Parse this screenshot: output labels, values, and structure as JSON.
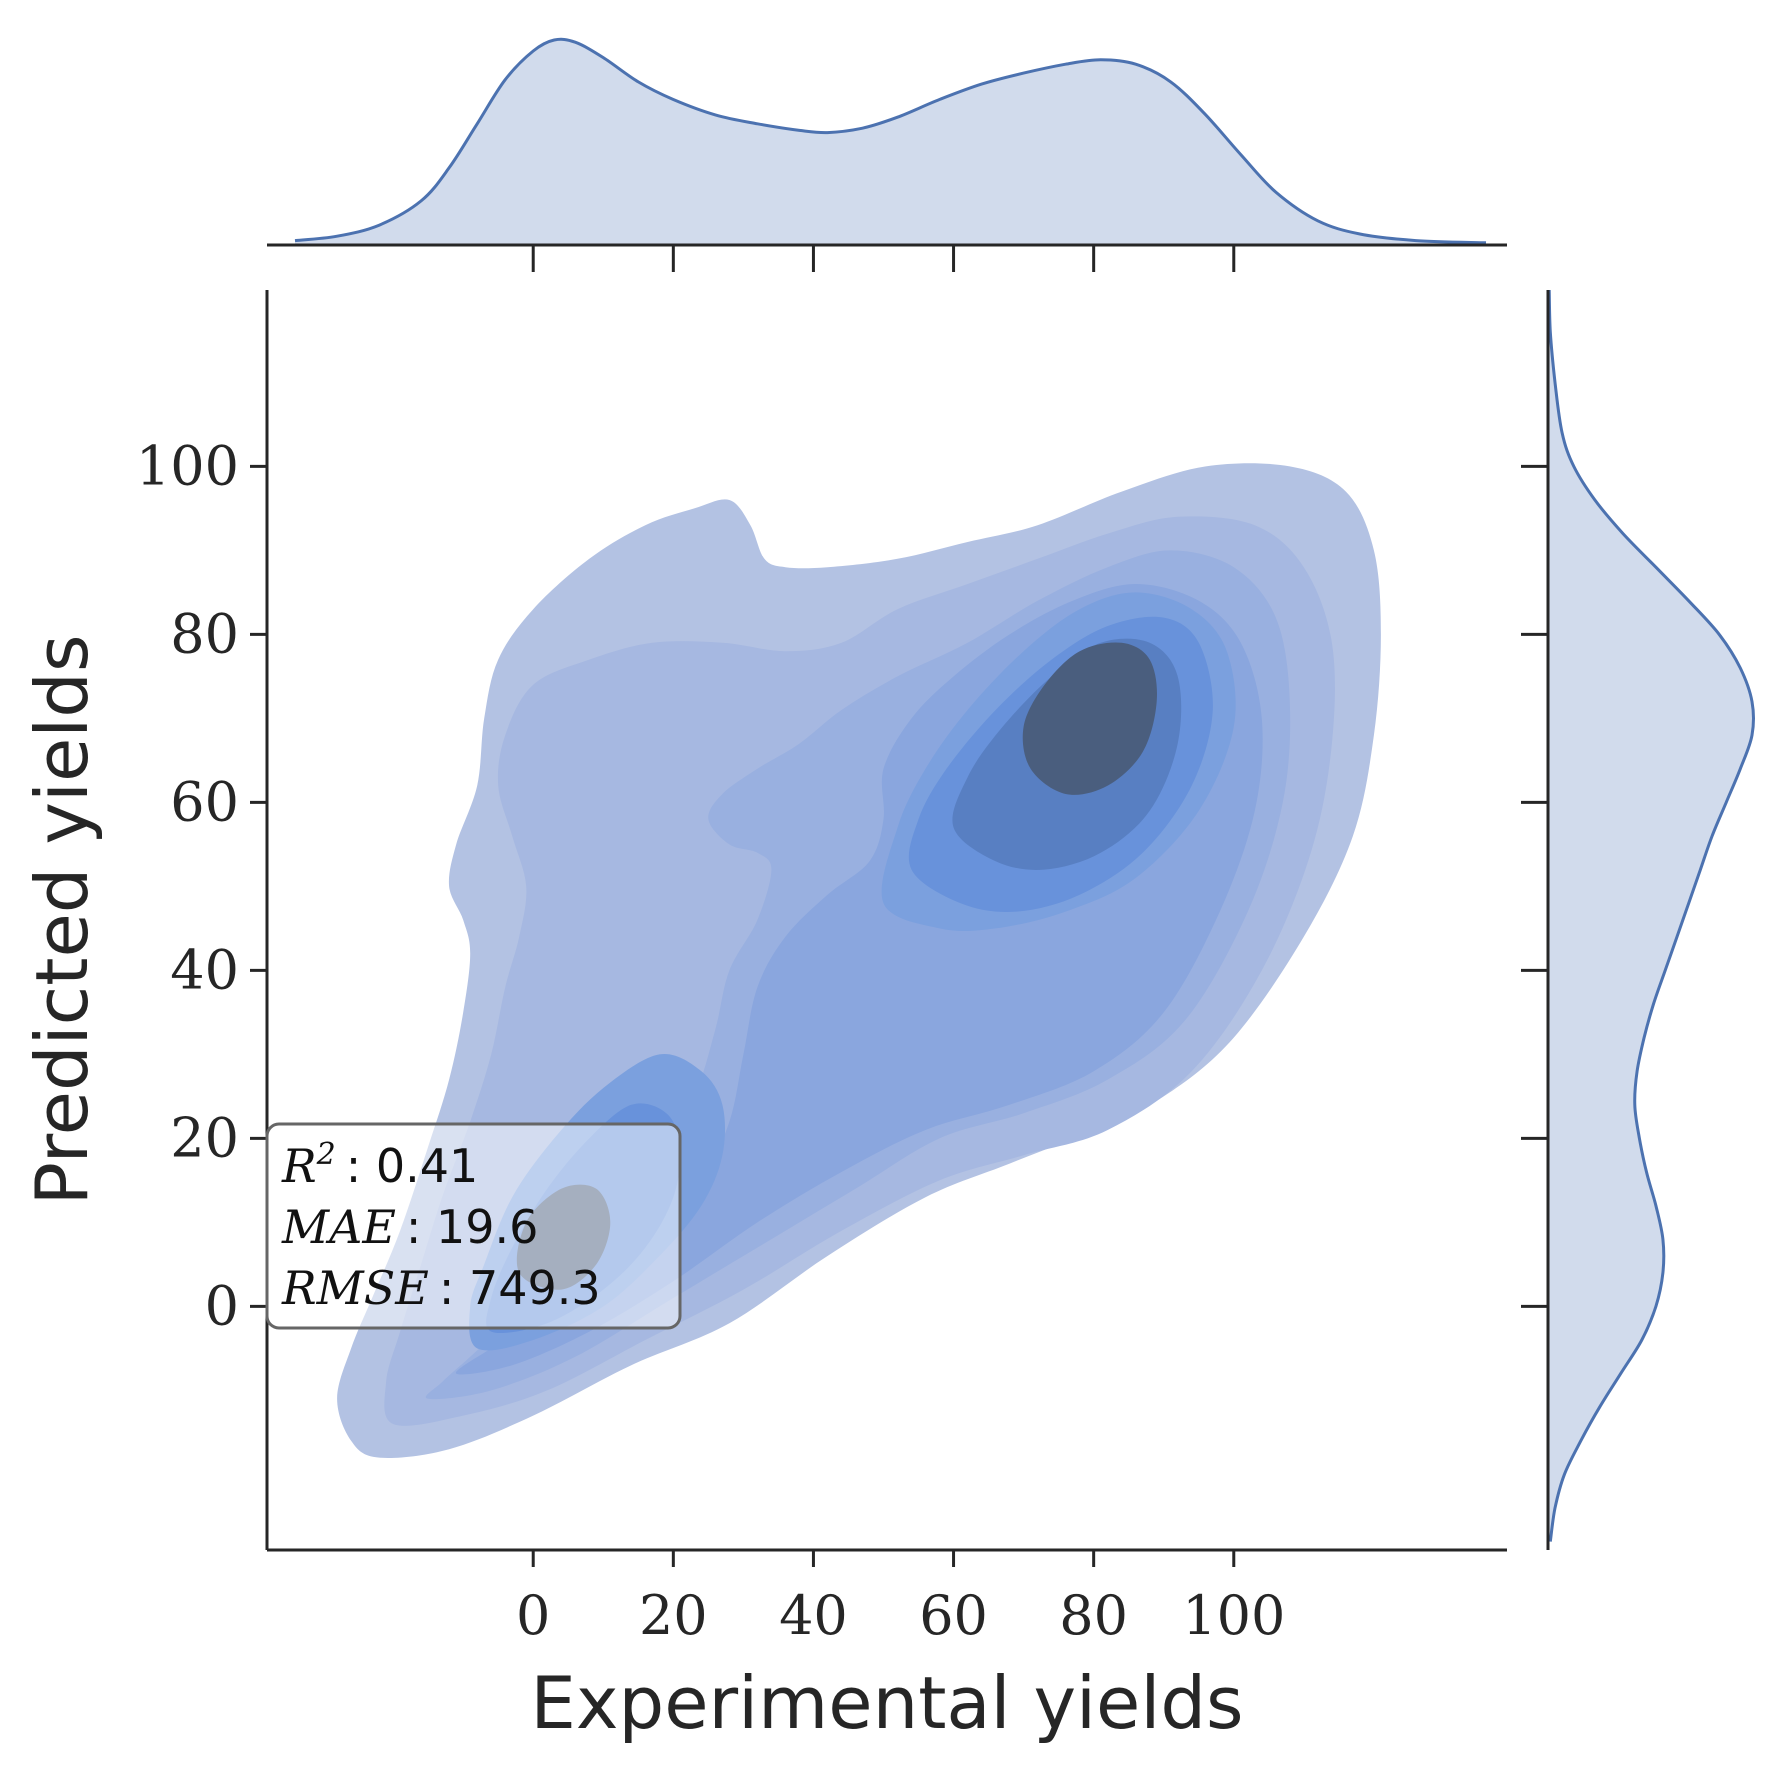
{
  "chart_data": {
    "type": "kde-jointplot",
    "xlabel": "Experimental yields",
    "ylabel": "Predicted yields",
    "x_ticks": [
      0,
      20,
      40,
      60,
      80,
      100
    ],
    "y_ticks": [
      0,
      20,
      40,
      60,
      80,
      100
    ],
    "xlim": [
      -38,
      139
    ],
    "ylim": [
      -29,
      121
    ],
    "color": "#4c72b0",
    "marginal_fill": "#d1dbec",
    "contour_colors": [
      "#b3c2e3",
      "#a6b8e1",
      "#99b0e0",
      "#8aa6de",
      "#7ba0de",
      "#6892db",
      "#587fc2",
      "#4a5e7e"
    ],
    "marginal_x_kde": [
      [
        -34,
        0.002
      ],
      [
        -28,
        0.004
      ],
      [
        -22,
        0.009
      ],
      [
        -16,
        0.02
      ],
      [
        -12,
        0.035
      ],
      [
        -8,
        0.055
      ],
      [
        -4,
        0.075
      ],
      [
        0,
        0.088
      ],
      [
        3,
        0.093
      ],
      [
        6,
        0.092
      ],
      [
        10,
        0.085
      ],
      [
        15,
        0.074
      ],
      [
        20,
        0.066
      ],
      [
        26,
        0.059
      ],
      [
        32,
        0.055
      ],
      [
        38,
        0.052
      ],
      [
        42,
        0.051
      ],
      [
        47,
        0.053
      ],
      [
        52,
        0.058
      ],
      [
        58,
        0.066
      ],
      [
        64,
        0.073
      ],
      [
        70,
        0.078
      ],
      [
        76,
        0.082
      ],
      [
        81,
        0.084
      ],
      [
        86,
        0.082
      ],
      [
        91,
        0.074
      ],
      [
        96,
        0.059
      ],
      [
        101,
        0.041
      ],
      [
        106,
        0.024
      ],
      [
        112,
        0.011
      ],
      [
        118,
        0.005
      ],
      [
        126,
        0.002
      ],
      [
        136,
        0.001
      ]
    ],
    "marginal_y_kde": [
      [
        -28,
        0.001
      ],
      [
        -24,
        0.003
      ],
      [
        -20,
        0.007
      ],
      [
        -16,
        0.014
      ],
      [
        -12,
        0.022
      ],
      [
        -8,
        0.031
      ],
      [
        -4,
        0.04
      ],
      [
        0,
        0.046
      ],
      [
        4,
        0.049
      ],
      [
        8,
        0.049
      ],
      [
        12,
        0.046
      ],
      [
        16,
        0.042
      ],
      [
        20,
        0.039
      ],
      [
        24,
        0.037
      ],
      [
        28,
        0.038
      ],
      [
        32,
        0.041
      ],
      [
        36,
        0.045
      ],
      [
        40,
        0.05
      ],
      [
        44,
        0.055
      ],
      [
        48,
        0.06
      ],
      [
        52,
        0.065
      ],
      [
        56,
        0.07
      ],
      [
        60,
        0.076
      ],
      [
        64,
        0.082
      ],
      [
        68,
        0.087
      ],
      [
        72,
        0.087
      ],
      [
        76,
        0.082
      ],
      [
        80,
        0.073
      ],
      [
        84,
        0.06
      ],
      [
        88,
        0.046
      ],
      [
        92,
        0.032
      ],
      [
        96,
        0.02
      ],
      [
        100,
        0.011
      ],
      [
        104,
        0.006
      ],
      [
        110,
        0.003
      ],
      [
        116,
        0.001
      ],
      [
        121,
        0.0005
      ]
    ],
    "kde_contours": [
      {
        "level": 1,
        "points": [
          [
            -26,
            -16
          ],
          [
            -22,
            -18
          ],
          [
            -12,
            -17
          ],
          [
            0,
            -13
          ],
          [
            14,
            -7
          ],
          [
            28,
            -2
          ],
          [
            42,
            6
          ],
          [
            56,
            13
          ],
          [
            68,
            17
          ],
          [
            80,
            21
          ],
          [
            90,
            25
          ],
          [
            100,
            32
          ],
          [
            110,
            44
          ],
          [
            117,
            56
          ],
          [
            120,
            68
          ],
          [
            121,
            80
          ],
          [
            120,
            90
          ],
          [
            116,
            97
          ],
          [
            108,
            100
          ],
          [
            96,
            100
          ],
          [
            84,
            97
          ],
          [
            72,
            93
          ],
          [
            62,
            91
          ],
          [
            52,
            89
          ],
          [
            42,
            88
          ],
          [
            36,
            88
          ],
          [
            33,
            89
          ],
          [
            31,
            93
          ],
          [
            28,
            96
          ],
          [
            23,
            95
          ],
          [
            16,
            93
          ],
          [
            8,
            89
          ],
          [
            0,
            83
          ],
          [
            -5,
            77
          ],
          [
            -7,
            70
          ],
          [
            -8,
            62
          ],
          [
            -11,
            55
          ],
          [
            -12,
            50
          ],
          [
            -10,
            46
          ],
          [
            -9,
            42
          ],
          [
            -10,
            35
          ],
          [
            -12,
            27
          ],
          [
            -15,
            19
          ],
          [
            -19,
            9
          ],
          [
            -23,
            1
          ],
          [
            -26,
            -5
          ],
          [
            -28,
            -11
          ]
        ]
      },
      {
        "level": 2,
        "points": [
          [
            -20,
            -14
          ],
          [
            -10,
            -13
          ],
          [
            2,
            -10
          ],
          [
            16,
            -4
          ],
          [
            30,
            2
          ],
          [
            44,
            9
          ],
          [
            58,
            15
          ],
          [
            70,
            18
          ],
          [
            82,
            21
          ],
          [
            94,
            28
          ],
          [
            104,
            40
          ],
          [
            111,
            54
          ],
          [
            114,
            67
          ],
          [
            114,
            79
          ],
          [
            110,
            88
          ],
          [
            103,
            93
          ],
          [
            92,
            94
          ],
          [
            82,
            92
          ],
          [
            72,
            89
          ],
          [
            62,
            86
          ],
          [
            52,
            83
          ],
          [
            44,
            79
          ],
          [
            36,
            78
          ],
          [
            27,
            79
          ],
          [
            17,
            79
          ],
          [
            8,
            77
          ],
          [
            0,
            74
          ],
          [
            -4,
            68
          ],
          [
            -5,
            62
          ],
          [
            -3,
            56
          ],
          [
            -1,
            50
          ],
          [
            -2,
            44
          ],
          [
            -4,
            38
          ],
          [
            -6,
            30
          ],
          [
            -9,
            22
          ],
          [
            -13,
            13
          ],
          [
            -16,
            5
          ],
          [
            -19,
            -3
          ],
          [
            -21,
            -9
          ]
        ]
      },
      {
        "level": 3,
        "points": [
          [
            -15,
            -11
          ],
          [
            -6,
            -10
          ],
          [
            6,
            -6
          ],
          [
            20,
            1
          ],
          [
            34,
            8
          ],
          [
            46,
            14
          ],
          [
            58,
            20
          ],
          [
            70,
            23
          ],
          [
            82,
            27
          ],
          [
            93,
            34
          ],
          [
            102,
            47
          ],
          [
            107,
            60
          ],
          [
            108,
            72
          ],
          [
            106,
            82
          ],
          [
            100,
            88
          ],
          [
            91,
            90
          ],
          [
            82,
            88
          ],
          [
            72,
            84
          ],
          [
            62,
            79
          ],
          [
            52,
            75
          ],
          [
            44,
            71
          ],
          [
            38,
            67
          ],
          [
            32,
            64
          ],
          [
            27,
            61
          ],
          [
            25,
            58
          ],
          [
            28,
            55
          ],
          [
            32,
            54
          ],
          [
            34,
            52
          ],
          [
            32,
            46
          ],
          [
            28,
            40
          ],
          [
            26,
            33
          ],
          [
            23,
            25
          ],
          [
            18,
            18
          ],
          [
            12,
            13
          ],
          [
            6,
            8
          ],
          [
            1,
            3
          ],
          [
            -4,
            -2
          ],
          [
            -9,
            -6
          ],
          [
            -13,
            -9
          ]
        ]
      },
      {
        "level": 4,
        "points": [
          [
            -11,
            -8
          ],
          [
            -3,
            -7
          ],
          [
            8,
            -3
          ],
          [
            20,
            3
          ],
          [
            32,
            10
          ],
          [
            44,
            16
          ],
          [
            56,
            21
          ],
          [
            68,
            24
          ],
          [
            80,
            28
          ],
          [
            90,
            35
          ],
          [
            98,
            47
          ],
          [
            103,
            59
          ],
          [
            104,
            70
          ],
          [
            101,
            79
          ],
          [
            95,
            84
          ],
          [
            86,
            86
          ],
          [
            77,
            84
          ],
          [
            68,
            80
          ],
          [
            60,
            75
          ],
          [
            54,
            70
          ],
          [
            50,
            64
          ],
          [
            50,
            58
          ],
          [
            48,
            53
          ],
          [
            42,
            49
          ],
          [
            36,
            44
          ],
          [
            32,
            38
          ],
          [
            30,
            30
          ],
          [
            28,
            22
          ],
          [
            24,
            15
          ],
          [
            18,
            10
          ],
          [
            12,
            6
          ],
          [
            6,
            2
          ],
          [
            0,
            -2
          ],
          [
            -6,
            -5
          ]
        ]
      },
      {
        "level": 5,
        "points": [
          [
            -8,
            -5
          ],
          [
            0,
            -4
          ],
          [
            10,
            0
          ],
          [
            18,
            6
          ],
          [
            24,
            12
          ],
          [
            27,
            18
          ],
          [
            27,
            24
          ],
          [
            24,
            28
          ],
          [
            18,
            30
          ],
          [
            10,
            26
          ],
          [
            3,
            20
          ],
          [
            -3,
            13
          ],
          [
            -7,
            5
          ],
          [
            -9,
            0
          ]
        ]
      },
      {
        "level": 5,
        "points": [
          [
            50,
            48
          ],
          [
            58,
            45
          ],
          [
            66,
            45
          ],
          [
            76,
            47
          ],
          [
            86,
            51
          ],
          [
            95,
            59
          ],
          [
            100,
            69
          ],
          [
            99,
            78
          ],
          [
            94,
            83
          ],
          [
            86,
            85
          ],
          [
            78,
            83
          ],
          [
            70,
            78
          ],
          [
            62,
            71
          ],
          [
            56,
            64
          ],
          [
            52,
            57
          ]
        ]
      },
      {
        "level": 6,
        "points": [
          [
            -6,
            -3
          ],
          [
            2,
            -2
          ],
          [
            10,
            2
          ],
          [
            16,
            7
          ],
          [
            20,
            13
          ],
          [
            21,
            19
          ],
          [
            19,
            23
          ],
          [
            14,
            24
          ],
          [
            8,
            20
          ],
          [
            2,
            14
          ],
          [
            -3,
            7
          ],
          [
            -6,
            1
          ]
        ]
      },
      {
        "level": 6,
        "points": [
          [
            54,
            52
          ],
          [
            61,
            48
          ],
          [
            69,
            47
          ],
          [
            78,
            49
          ],
          [
            87,
            54
          ],
          [
            94,
            62
          ],
          [
            97,
            71
          ],
          [
            95,
            79
          ],
          [
            90,
            82
          ],
          [
            82,
            81
          ],
          [
            74,
            77
          ],
          [
            66,
            71
          ],
          [
            59,
            64
          ],
          [
            55,
            58
          ]
        ]
      },
      {
        "level": 7,
        "points": [
          [
            60,
            57
          ],
          [
            66,
            53
          ],
          [
            73,
            52
          ],
          [
            81,
            54
          ],
          [
            88,
            59
          ],
          [
            92,
            67
          ],
          [
            92,
            75
          ],
          [
            88,
            79
          ],
          [
            81,
            79
          ],
          [
            74,
            75
          ],
          [
            67,
            69
          ],
          [
            62,
            63
          ]
        ]
      },
      {
        "level": 8,
        "points": [
          [
            71,
            64
          ],
          [
            76,
            61
          ],
          [
            82,
            62
          ],
          [
            87,
            66
          ],
          [
            89,
            72
          ],
          [
            88,
            77
          ],
          [
            84,
            79
          ],
          [
            78,
            78
          ],
          [
            73,
            74
          ],
          [
            70,
            69
          ]
        ]
      },
      {
        "level": 8,
        "points": [
          [
            -2,
            4
          ],
          [
            4,
            2
          ],
          [
            9,
            5
          ],
          [
            11,
            10
          ],
          [
            9,
            14
          ],
          [
            4,
            14
          ],
          [
            -1,
            10
          ]
        ]
      }
    ]
  },
  "stats_box": {
    "r2_key": "R",
    "r2_sup": "2",
    "r2_value": ": 0.41",
    "mae_key": "MAE",
    "mae_value": ": 19.6",
    "rmse_key": "RMSE",
    "rmse_value": ": 749.3"
  }
}
